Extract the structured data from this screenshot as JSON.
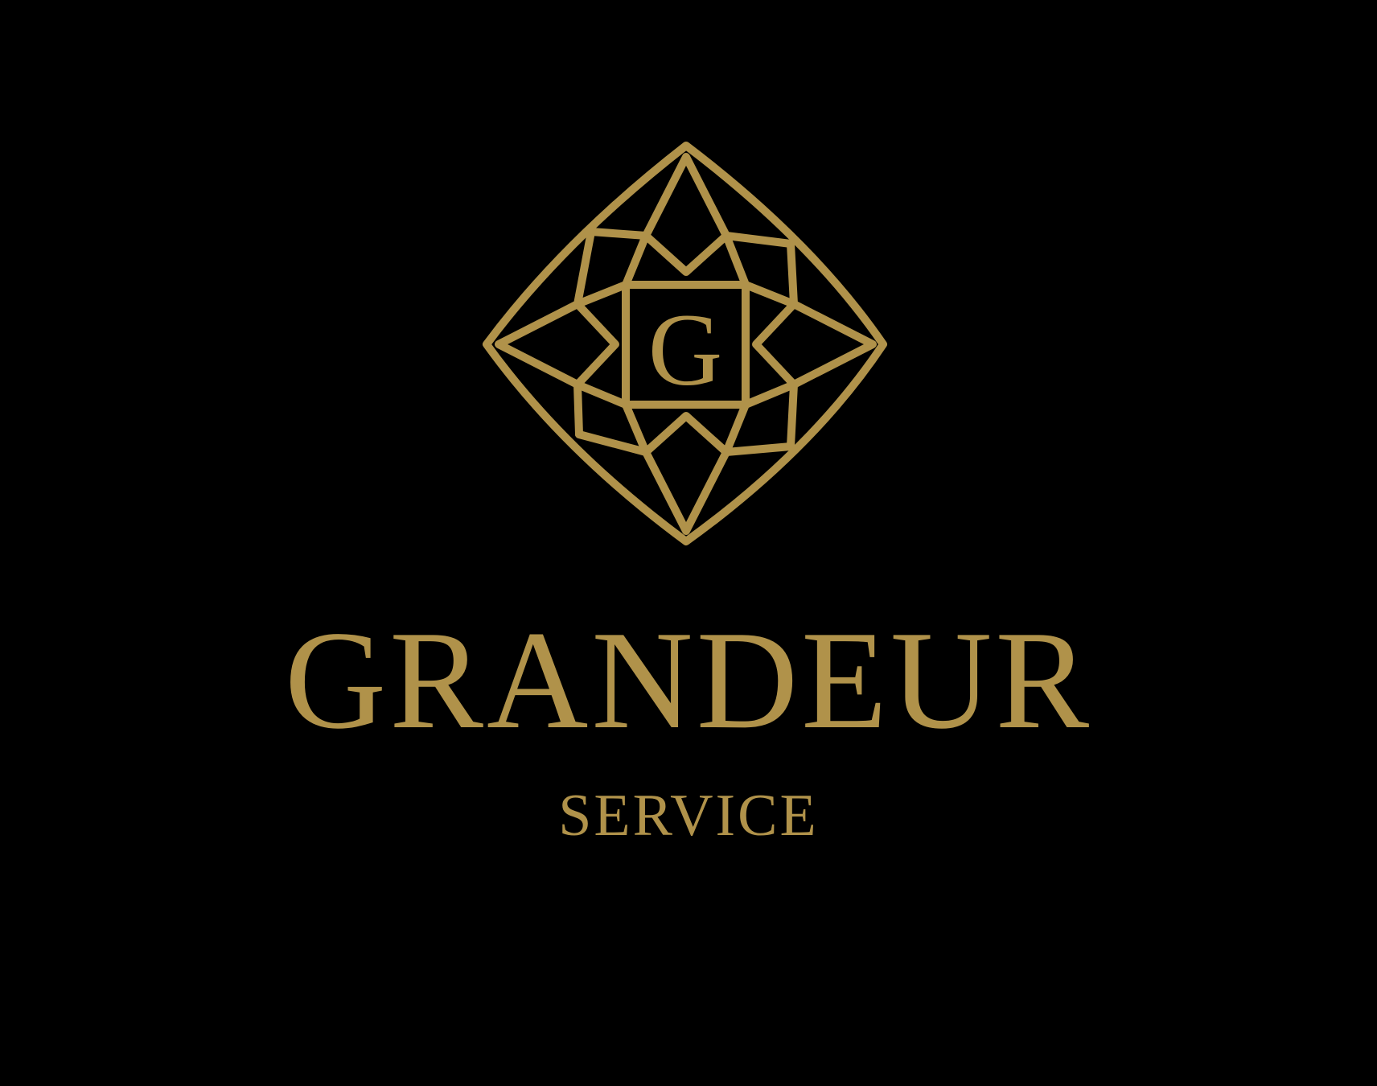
{
  "logo": {
    "emblem_name": "gem-monogram-emblem",
    "monogram": "G",
    "brand_name": "GRANDEUR",
    "tagline": "SERVICE"
  },
  "colors": {
    "background": "#000000",
    "gold": "#B0924A"
  }
}
